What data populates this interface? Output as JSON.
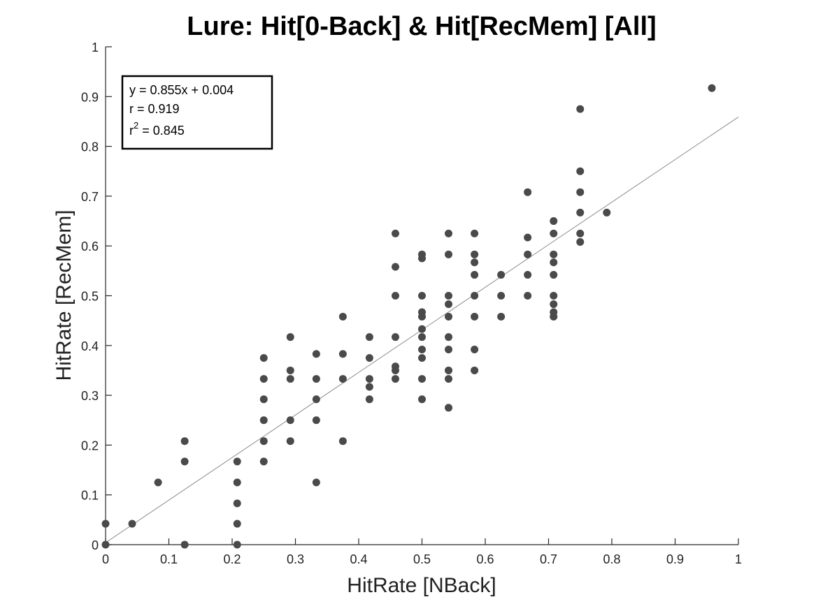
{
  "chart_data": {
    "type": "scatter",
    "title": "Lure: Hit[0-Back] & Hit[RecMem] [All]",
    "xlabel": "HitRate [NBack]",
    "ylabel": "HitRate [RecMem]",
    "xlim": [
      0,
      1
    ],
    "ylim": [
      0,
      1
    ],
    "x_ticks": [
      "0",
      "0.1",
      "0.2",
      "0.3",
      "0.4",
      "0.5",
      "0.6",
      "0.7",
      "0.8",
      "0.9",
      "1"
    ],
    "y_ticks": [
      "0",
      "0.1",
      "0.2",
      "0.3",
      "0.4",
      "0.5",
      "0.6",
      "0.7",
      "0.8",
      "0.9",
      "1"
    ],
    "grid": false,
    "marker_color": "#4a4a4a",
    "line_color": "#8c8c8c",
    "fit": {
      "slope": 0.855,
      "intercept": 0.004
    },
    "stats": {
      "equation": "y = 0.855x + 0.004",
      "r": "r = 0.919",
      "r2_base": "r",
      "r2_sup": "2",
      "r2_value": " = 0.845"
    },
    "points": [
      [
        0,
        0.042
      ],
      [
        0,
        0
      ],
      [
        0.042,
        0.042
      ],
      [
        0.083,
        0.125
      ],
      [
        0.125,
        0.208
      ],
      [
        0.125,
        0.167
      ],
      [
        0.125,
        0
      ],
      [
        0.208,
        0.167
      ],
      [
        0.208,
        0.125
      ],
      [
        0.208,
        0.083
      ],
      [
        0.208,
        0.042
      ],
      [
        0.208,
        0
      ],
      [
        0.25,
        0.375
      ],
      [
        0.25,
        0.333
      ],
      [
        0.25,
        0.292
      ],
      [
        0.25,
        0.25
      ],
      [
        0.25,
        0.208
      ],
      [
        0.25,
        0.167
      ],
      [
        0.292,
        0.417
      ],
      [
        0.292,
        0.35
      ],
      [
        0.292,
        0.333
      ],
      [
        0.292,
        0.25
      ],
      [
        0.292,
        0.208
      ],
      [
        0.333,
        0.383
      ],
      [
        0.333,
        0.333
      ],
      [
        0.333,
        0.292
      ],
      [
        0.333,
        0.25
      ],
      [
        0.333,
        0.125
      ],
      [
        0.375,
        0.458
      ],
      [
        0.375,
        0.383
      ],
      [
        0.375,
        0.333
      ],
      [
        0.375,
        0.208
      ],
      [
        0.417,
        0.417
      ],
      [
        0.417,
        0.375
      ],
      [
        0.417,
        0.333
      ],
      [
        0.417,
        0.317
      ],
      [
        0.417,
        0.292
      ],
      [
        0.458,
        0.625
      ],
      [
        0.458,
        0.558
      ],
      [
        0.458,
        0.5
      ],
      [
        0.458,
        0.417
      ],
      [
        0.458,
        0.358
      ],
      [
        0.458,
        0.35
      ],
      [
        0.458,
        0.333
      ],
      [
        0.5,
        0.583
      ],
      [
        0.5,
        0.575
      ],
      [
        0.5,
        0.5
      ],
      [
        0.5,
        0.467
      ],
      [
        0.5,
        0.458
      ],
      [
        0.5,
        0.433
      ],
      [
        0.5,
        0.417
      ],
      [
        0.5,
        0.392
      ],
      [
        0.5,
        0.375
      ],
      [
        0.5,
        0.333
      ],
      [
        0.5,
        0.292
      ],
      [
        0.542,
        0.625
      ],
      [
        0.542,
        0.583
      ],
      [
        0.542,
        0.5
      ],
      [
        0.542,
        0.483
      ],
      [
        0.542,
        0.458
      ],
      [
        0.542,
        0.417
      ],
      [
        0.542,
        0.392
      ],
      [
        0.542,
        0.35
      ],
      [
        0.542,
        0.333
      ],
      [
        0.542,
        0.275
      ],
      [
        0.583,
        0.625
      ],
      [
        0.583,
        0.583
      ],
      [
        0.583,
        0.567
      ],
      [
        0.583,
        0.542
      ],
      [
        0.583,
        0.5
      ],
      [
        0.583,
        0.458
      ],
      [
        0.583,
        0.392
      ],
      [
        0.583,
        0.35
      ],
      [
        0.625,
        0.542
      ],
      [
        0.625,
        0.5
      ],
      [
        0.625,
        0.458
      ],
      [
        0.667,
        0.708
      ],
      [
        0.667,
        0.617
      ],
      [
        0.667,
        0.583
      ],
      [
        0.667,
        0.542
      ],
      [
        0.667,
        0.5
      ],
      [
        0.708,
        0.65
      ],
      [
        0.708,
        0.625
      ],
      [
        0.708,
        0.583
      ],
      [
        0.708,
        0.567
      ],
      [
        0.708,
        0.542
      ],
      [
        0.708,
        0.5
      ],
      [
        0.708,
        0.483
      ],
      [
        0.708,
        0.467
      ],
      [
        0.708,
        0.458
      ],
      [
        0.75,
        0.875
      ],
      [
        0.75,
        0.75
      ],
      [
        0.75,
        0.708
      ],
      [
        0.75,
        0.667
      ],
      [
        0.75,
        0.625
      ],
      [
        0.75,
        0.608
      ],
      [
        0.792,
        0.667
      ],
      [
        0.958,
        0.917
      ]
    ]
  }
}
